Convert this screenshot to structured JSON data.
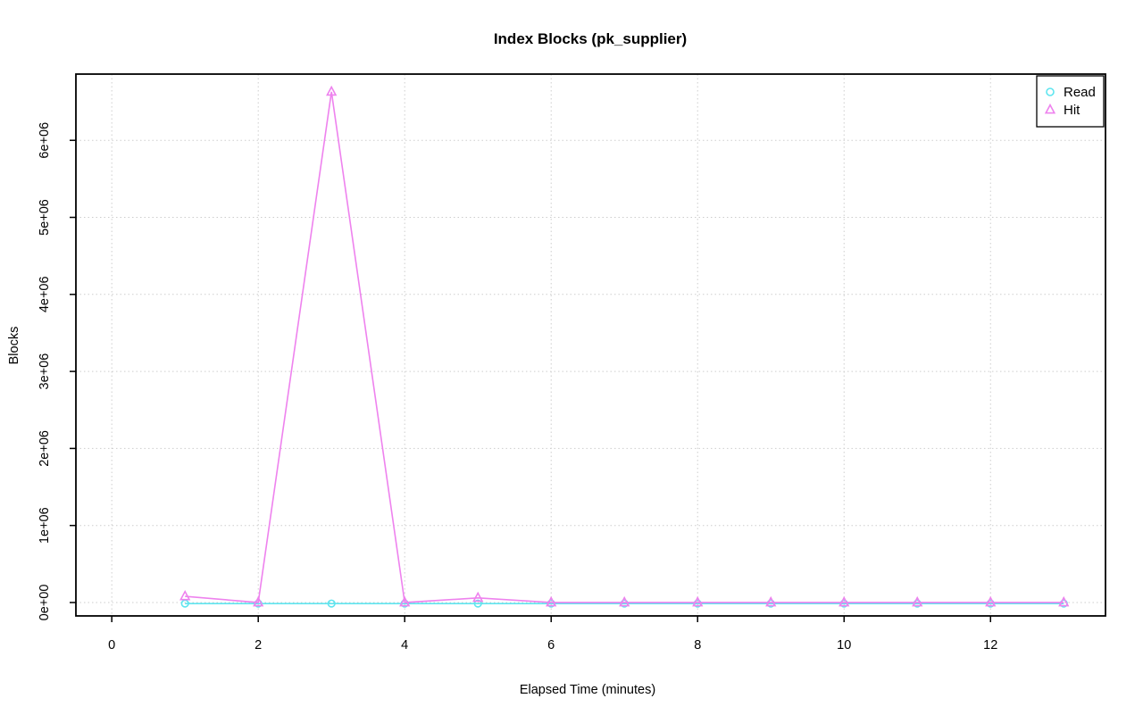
{
  "chart_data": {
    "type": "line",
    "title": "Index Blocks (pk_supplier)",
    "xlabel": "Elapsed Time (minutes)",
    "ylabel": "Blocks",
    "x": [
      1,
      2,
      3,
      4,
      5,
      6,
      7,
      8,
      9,
      10,
      11,
      12,
      13
    ],
    "series": [
      {
        "name": "Read",
        "marker": "circle",
        "color": "#5FE5EF",
        "values": [
          0,
          0,
          0,
          0,
          0,
          0,
          0,
          0,
          0,
          0,
          0,
          0,
          0
        ]
      },
      {
        "name": "Hit",
        "marker": "triangle-up",
        "color": "#EE82EE",
        "values": [
          80000,
          0,
          6630000,
          0,
          60000,
          0,
          0,
          0,
          0,
          0,
          0,
          0,
          0
        ]
      }
    ],
    "xlim": [
      -0.49,
      13.57
    ],
    "ylim": [
      -174000,
      6860000
    ],
    "x_ticks": {
      "values": [
        0,
        2,
        4,
        6,
        8,
        10,
        12
      ],
      "labels": [
        "0",
        "2",
        "4",
        "6",
        "8",
        "10",
        "12"
      ]
    },
    "y_ticks": {
      "values": [
        0,
        1000000,
        2000000,
        3000000,
        4000000,
        5000000,
        6000000
      ],
      "labels": [
        "0e+00",
        "1e+06",
        "2e+06",
        "3e+06",
        "4e+06",
        "5e+06",
        "6e+06"
      ]
    },
    "grid": {
      "visible": true,
      "style": "dotted",
      "color": "#CDCDCD"
    },
    "legend": {
      "position": "top-right",
      "entries": [
        "Read",
        "Hit"
      ]
    },
    "background": "#FFFFFF",
    "frame_color": "#000000"
  }
}
